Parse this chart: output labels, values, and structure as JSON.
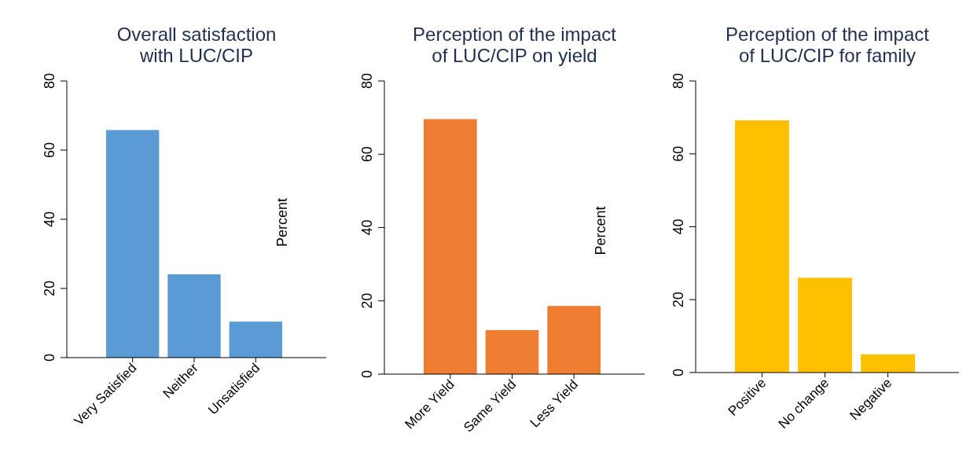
{
  "chart_data": [
    {
      "type": "bar",
      "title": "Overall satisfaction\nwith LUC/CIP",
      "ylabel": "Percent",
      "categories": [
        "Very Satisfied",
        "Neither",
        "Unsatisfied"
      ],
      "values": [
        65.8,
        24.1,
        10.4
      ],
      "color": "#5b9bd5",
      "ylim": [
        0,
        80
      ],
      "yticks": [
        0,
        20,
        40,
        60,
        80
      ],
      "grid": false
    },
    {
      "type": "bar",
      "title": "Perception of the impact\nof LUC/CIP on yield",
      "ylabel": "Percent",
      "categories": [
        "More Yield",
        "Same Yield",
        "Less Yield"
      ],
      "values": [
        69.6,
        12.0,
        18.6
      ],
      "color": "#ed7d31",
      "ylim": [
        0,
        80
      ],
      "yticks": [
        0,
        20,
        40,
        60,
        80
      ],
      "grid": false
    },
    {
      "type": "bar",
      "title": "Perception of the impact\nof LUC/CIP for family",
      "categories": [
        "Positive",
        "No change",
        "Negative"
      ],
      "values": [
        69.2,
        26.0,
        5.0
      ],
      "color": "#ffc000",
      "ylim": [
        0,
        80
      ],
      "yticks": [
        0,
        20,
        40,
        60,
        80
      ],
      "grid": false
    }
  ]
}
